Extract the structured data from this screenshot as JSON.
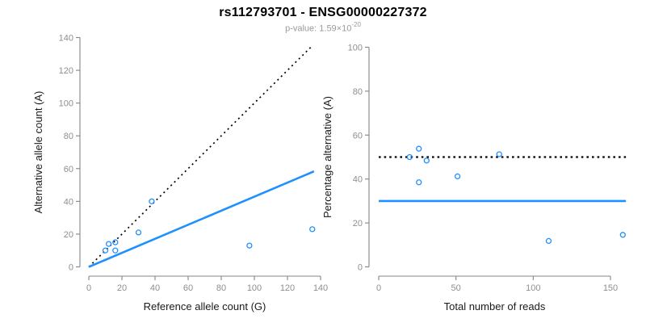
{
  "title": "rs112793701 - ENSG00000227372",
  "subtitle": {
    "prefix": "p-value: 1.59×10",
    "exponent": "-20"
  },
  "colors": {
    "accent_blue": "#1E90FF",
    "dotted_black": "#000000",
    "axis_line_gray": "#848484",
    "tick_label_gray": "#8e8e8e",
    "axis_title_color": "#1a1a1a",
    "title_color": "#000000",
    "subtitle_gray": "#9b9b9b",
    "background": "#ffffff"
  },
  "chart_data": [
    {
      "type": "scatter",
      "panel": "allele-counts",
      "xlabel": "Reference allele count (G)",
      "ylabel": "Alternative allele count (A)",
      "xlim": [
        0,
        140
      ],
      "ylim": [
        0,
        140
      ],
      "x_ticks": [
        0,
        20,
        40,
        60,
        80,
        100,
        120,
        140
      ],
      "y_ticks": [
        0,
        20,
        40,
        60,
        80,
        100,
        120,
        140
      ],
      "grid": false,
      "legend": "none",
      "marker": "open-circle",
      "points": [
        {
          "x": 10,
          "y": 10
        },
        {
          "x": 12,
          "y": 14
        },
        {
          "x": 16,
          "y": 15
        },
        {
          "x": 16,
          "y": 10
        },
        {
          "x": 30,
          "y": 21
        },
        {
          "x": 38,
          "y": 40
        },
        {
          "x": 97,
          "y": 13
        },
        {
          "x": 135,
          "y": 23
        }
      ],
      "lines": [
        {
          "name": "identity-line",
          "style": "dotted",
          "color": "#000000",
          "from": {
            "x": 0,
            "y": 0
          },
          "to": {
            "x": 135,
            "y": 135
          }
        },
        {
          "name": "expected-ratio-line",
          "style": "solid",
          "color": "#1E90FF",
          "from": {
            "x": 0,
            "y": 0
          },
          "to": {
            "x": 136,
            "y": 58.3
          }
        }
      ]
    },
    {
      "type": "scatter",
      "panel": "percentage-vs-coverage",
      "xlabel": "Total number of reads",
      "ylabel": "Percentage alternative (A)",
      "xlim": [
        0,
        160
      ],
      "ylim": [
        0,
        100
      ],
      "x_ticks": [
        0,
        50,
        100,
        150
      ],
      "y_ticks": [
        0,
        20,
        40,
        60,
        80,
        100
      ],
      "grid": false,
      "legend": "none",
      "marker": "open-circle",
      "points": [
        {
          "x": 20,
          "y": 50.0
        },
        {
          "x": 26,
          "y": 53.8
        },
        {
          "x": 31,
          "y": 48.4
        },
        {
          "x": 26,
          "y": 38.5
        },
        {
          "x": 51,
          "y": 41.2
        },
        {
          "x": 78,
          "y": 51.3
        },
        {
          "x": 110,
          "y": 11.8
        },
        {
          "x": 158,
          "y": 14.6
        }
      ],
      "lines": [
        {
          "name": "null-50pct-line",
          "style": "dotted",
          "color": "#000000",
          "from": {
            "x": 0,
            "y": 50
          },
          "to": {
            "x": 160,
            "y": 50
          }
        },
        {
          "name": "expected-30pct-line",
          "style": "solid",
          "color": "#1E90FF",
          "from": {
            "x": 0,
            "y": 30
          },
          "to": {
            "x": 160,
            "y": 30
          }
        }
      ]
    }
  ]
}
